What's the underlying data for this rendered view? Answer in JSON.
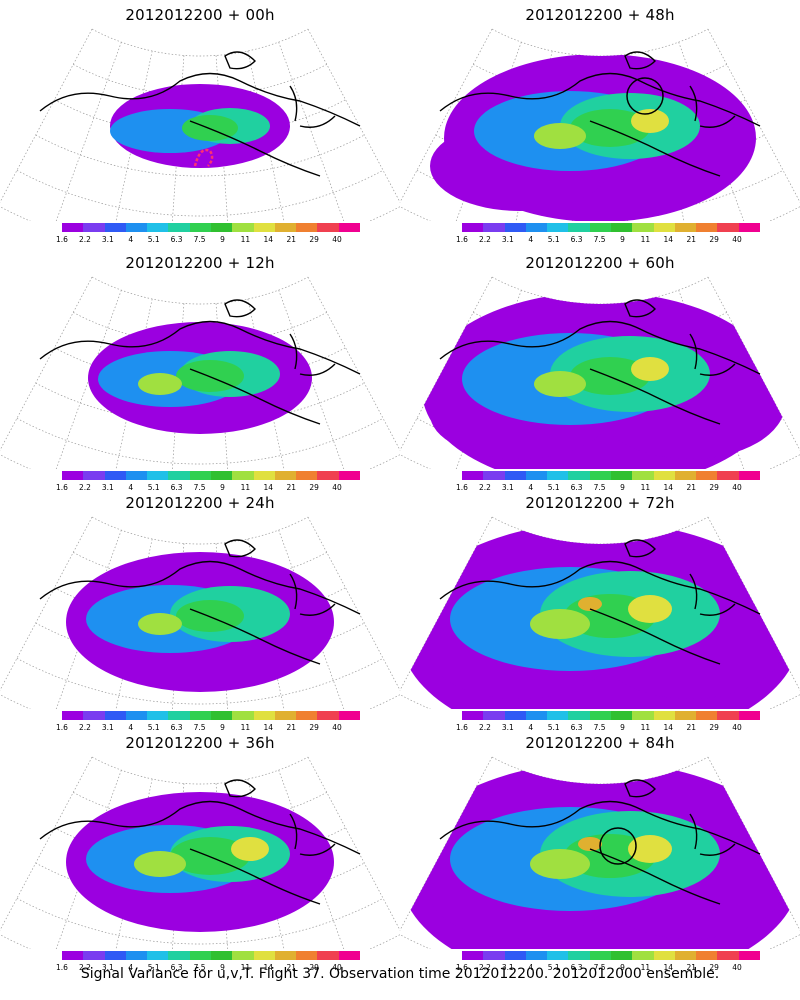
{
  "panels": [
    {
      "title": "2012012200 + 00h",
      "intensity": 1,
      "extent": 0
    },
    {
      "title": "2012012200 + 48h",
      "intensity": 3,
      "extent": 3,
      "circle": true
    },
    {
      "title": "2012012200 + 12h",
      "intensity": 2,
      "extent": 1
    },
    {
      "title": "2012012200 + 60h",
      "intensity": 3,
      "extent": 4
    },
    {
      "title": "2012012200 + 24h",
      "intensity": 2,
      "extent": 2
    },
    {
      "title": "2012012200 + 72h",
      "intensity": 4,
      "extent": 5
    },
    {
      "title": "2012012200 + 36h",
      "intensity": 3,
      "extent": 2
    },
    {
      "title": "2012012200 + 84h",
      "intensity": 4,
      "extent": 5,
      "circle": true
    }
  ],
  "colorbar": {
    "colors": [
      "#9b00e0",
      "#7a3cf0",
      "#2f5af5",
      "#1e90f0",
      "#20c0e8",
      "#20d0a0",
      "#30d050",
      "#30c030",
      "#a0e040",
      "#e0e040",
      "#e0b030",
      "#f08030",
      "#f04050",
      "#f00090"
    ],
    "labels": [
      "1.6",
      "2.2",
      "3.1",
      "4",
      "5.1",
      "6.3",
      "7.5",
      "9",
      "11",
      "14",
      "21",
      "29",
      "40"
    ]
  },
  "caption": "Signal Variance for u,v,T. Flight 37. Observation time 2012012200. 2012012000 ensemble.",
  "accent_circle_color": "#000000",
  "flight_track_color": "#ff3070"
}
